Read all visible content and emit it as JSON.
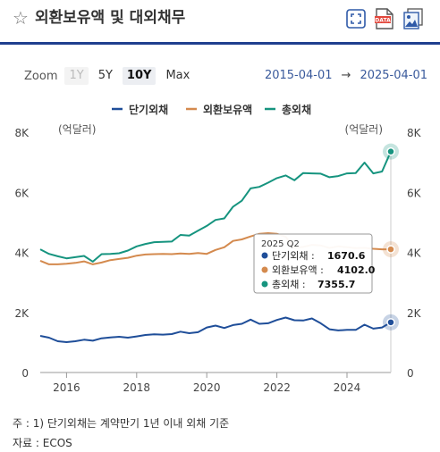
{
  "header": {
    "title": "외환보유액 및 대외채무",
    "icons": [
      "star-outline-icon",
      "expand-icon",
      "data-download-icon",
      "image-download-icon"
    ]
  },
  "zoom": {
    "label": "Zoom",
    "options": [
      {
        "label": "1Y",
        "state": "disabled"
      },
      {
        "label": "5Y",
        "state": "normal"
      },
      {
        "label": "10Y",
        "state": "active"
      },
      {
        "label": "Max",
        "state": "normal"
      }
    ]
  },
  "range": {
    "from": "2015-04-01",
    "arrow": "→",
    "to": "2025-04-01"
  },
  "chart_data": {
    "type": "line",
    "legend_position": "top",
    "grid": false,
    "y_unit_left": "(억달러)",
    "y_unit_right": "(억달러)",
    "ylim": [
      0,
      8000
    ],
    "y_ticks": [
      {
        "value": 0,
        "label": "0"
      },
      {
        "value": 2000,
        "label": "2K"
      },
      {
        "value": 4000,
        "label": "4K"
      },
      {
        "value": 6000,
        "label": "6K"
      },
      {
        "value": 8000,
        "label": "8K"
      }
    ],
    "xlim": [
      2015.25,
      2025.25
    ],
    "x_ticks": [
      {
        "value": 2016,
        "label": "2016"
      },
      {
        "value": 2018,
        "label": "2018"
      },
      {
        "value": 2020,
        "label": "2020"
      },
      {
        "value": 2022,
        "label": "2022"
      },
      {
        "value": 2024,
        "label": "2024"
      }
    ],
    "x": [
      "2015 Q2",
      "2015 Q3",
      "2015 Q4",
      "2016 Q1",
      "2016 Q2",
      "2016 Q3",
      "2016 Q4",
      "2017 Q1",
      "2017 Q2",
      "2017 Q3",
      "2017 Q4",
      "2018 Q1",
      "2018 Q2",
      "2018 Q3",
      "2018 Q4",
      "2019 Q1",
      "2019 Q2",
      "2019 Q3",
      "2019 Q4",
      "2020 Q1",
      "2020 Q2",
      "2020 Q3",
      "2020 Q4",
      "2021 Q1",
      "2021 Q2",
      "2021 Q3",
      "2021 Q4",
      "2022 Q1",
      "2022 Q2",
      "2022 Q3",
      "2022 Q4",
      "2023 Q1",
      "2023 Q2",
      "2023 Q3",
      "2023 Q4",
      "2024 Q1",
      "2024 Q2",
      "2024 Q3",
      "2024 Q4",
      "2025 Q1",
      "2025 Q2"
    ],
    "series": [
      {
        "name": "단기외채",
        "color": "#1f4e99",
        "values": [
          1220,
          1160,
          1040,
          1010,
          1040,
          1090,
          1060,
          1140,
          1170,
          1190,
          1160,
          1200,
          1250,
          1270,
          1260,
          1280,
          1360,
          1310,
          1340,
          1500,
          1560,
          1480,
          1580,
          1620,
          1760,
          1620,
          1640,
          1750,
          1830,
          1740,
          1730,
          1800,
          1640,
          1440,
          1400,
          1420,
          1420,
          1590,
          1460,
          1500,
          1670.6
        ]
      },
      {
        "name": "외환보유액",
        "color": "#d48a4e",
        "values": [
          3720,
          3600,
          3600,
          3620,
          3650,
          3700,
          3600,
          3660,
          3740,
          3780,
          3820,
          3890,
          3930,
          3940,
          3950,
          3940,
          3960,
          3950,
          3980,
          3950,
          4080,
          4170,
          4380,
          4430,
          4530,
          4620,
          4640,
          4620,
          4520,
          4150,
          4180,
          4250,
          4230,
          4150,
          4200,
          4170,
          4140,
          4150,
          4120,
          4100,
          4102.0
        ]
      },
      {
        "name": "총외채",
        "color": "#16947f",
        "values": [
          4100,
          3950,
          3870,
          3800,
          3840,
          3880,
          3690,
          3940,
          3950,
          3970,
          4060,
          4200,
          4280,
          4340,
          4350,
          4360,
          4580,
          4560,
          4720,
          4880,
          5080,
          5130,
          5520,
          5720,
          6130,
          6180,
          6320,
          6470,
          6560,
          6400,
          6640,
          6630,
          6620,
          6500,
          6540,
          6630,
          6640,
          6990,
          6630,
          6690,
          7355.7
        ]
      }
    ],
    "tooltip": {
      "period": "2025 Q2",
      "rows": [
        {
          "name": "단기외채",
          "value": "1670.6"
        },
        {
          "name": "외환보유액",
          "value": "4102.0"
        },
        {
          "name": "총외채",
          "value": "7355.7"
        }
      ]
    }
  },
  "notes": {
    "note": "주 : 1) 단기외채는 계약만기 1년 이내 외채 기준",
    "source": "자료 : ECOS"
  }
}
